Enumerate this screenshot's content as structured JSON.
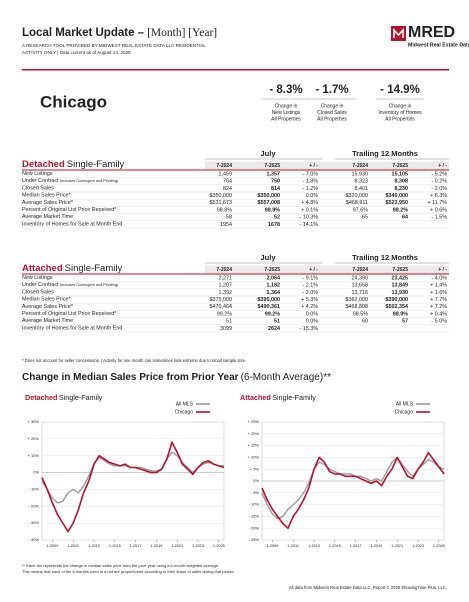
{
  "header": {
    "title": "Local Market Update –",
    "title_bracket": "[Month] [Year]",
    "subtitle_lines": [
      "A RESEARCH TOOL PROVIDED BY MIDWEST REAL ESTATE DATA LLC RESIDENTIAL",
      "ACTIVITY ONLY | Data current as of August 14, 2025"
    ],
    "logo": {
      "name": "MRED",
      "tagline": "Midwest Real Estate Data"
    }
  },
  "area": "Chicago",
  "stats": [
    {
      "value": "- 8.3%",
      "lines": [
        "Change in",
        "New Listings",
        "All Properties"
      ]
    },
    {
      "value": "- 1.7%",
      "lines": [
        "Change in",
        "Closed Sales",
        "All Properties"
      ]
    },
    {
      "value": "- 14.9%",
      "lines": [
        "Change in",
        "Inventory of Homes",
        "All Properties"
      ]
    }
  ],
  "tables": [
    {
      "title_a": "Detached",
      "title_b": "Single-Family",
      "period_headers": [
        "July",
        "Trailing 12 Months"
      ],
      "columns": [
        "7-2024",
        "7-2025",
        "+ / -",
        "7-2024",
        "7-2025",
        "+ / -"
      ],
      "rows": [
        {
          "label": "New Listings",
          "cells": [
            "1,459",
            "1,357",
            "- 7.0%",
            "15,930",
            "15,105",
            "- 5.2%"
          ]
        },
        {
          "label": "Under Contract",
          "label_note": "(includes Contingent and Pending)",
          "cells": [
            "764",
            "750",
            "- 1.8%",
            "8,323",
            "8,308",
            "- 0.2%"
          ]
        },
        {
          "label": "Closed Sales",
          "cells": [
            "824",
            "814",
            "- 1.2%",
            "8,401",
            "8,230",
            "- 2.0%"
          ]
        },
        {
          "label": "Median Sales Price*",
          "cells": [
            "$350,000",
            "$350,000",
            "0.0%",
            "$320,000",
            "$340,000",
            "+ 6.3%"
          ]
        },
        {
          "label": "Average Sales Price*",
          "cells": [
            "$531,673",
            "$557,008",
            "+ 4.8%",
            "$468,911",
            "$523,950",
            "+ 11.7%"
          ]
        },
        {
          "label": "Percent of Original List Price Received*",
          "cells": [
            "98.8%",
            "98.9%",
            "+ 0.1%",
            "97.6%",
            "98.2%",
            "+ 0.6%"
          ]
        },
        {
          "label": "Average Market Time",
          "cells": [
            "58",
            "52",
            "- 10.3%",
            "65",
            "64",
            "- 1.5%"
          ]
        },
        {
          "label": "Inventory of Homes for Sale at Month End",
          "cells": [
            "1954",
            "1678",
            "- 14.1%",
            null,
            null,
            null
          ]
        }
      ]
    },
    {
      "title_a": "Attached",
      "title_b": "Single-Family",
      "period_headers": [
        "July",
        "Trailing 12 Months"
      ],
      "columns": [
        "7-2024",
        "7-2025",
        "+ / -",
        "7-2024",
        "7-2025",
        "+ / -"
      ],
      "rows": [
        {
          "label": "New Listings",
          "cells": [
            "2,271",
            "2,064",
            "- 9.1%",
            "24,390",
            "23,425",
            "- 4.0%"
          ]
        },
        {
          "label": "Under Contract",
          "label_note": "(includes Contingent and Pending)",
          "cells": [
            "1,207",
            "1,182",
            "- 2.1%",
            "13,658",
            "13,849",
            "+ 1.4%"
          ]
        },
        {
          "label": "Closed Sales",
          "cells": [
            "1,392",
            "1,364",
            "- 2.0%",
            "13,716",
            "13,930",
            "+ 1.6%"
          ]
        },
        {
          "label": "Median Sales Price*",
          "cells": [
            "$375,000",
            "$395,000",
            "+ 5.3%",
            "$362,000",
            "$390,000",
            "+ 7.7%"
          ]
        },
        {
          "label": "Average Sales Price*",
          "cells": [
            "$470,464",
            "$490,361",
            "+ 4.2%",
            "$468,808",
            "$502,354",
            "+ 7.2%"
          ]
        },
        {
          "label": "Percent of Original List Price Received*",
          "cells": [
            "99.2%",
            "99.2%",
            "0.0%",
            "98.5%",
            "98.9%",
            "+ 0.4%"
          ]
        },
        {
          "label": "Average Market Time",
          "cells": [
            "51",
            "51",
            "0.0%",
            "60",
            "57",
            "- 5.0%"
          ]
        },
        {
          "label": "Inventory of Homes for Sale at Month End",
          "cells": [
            "3099",
            "2624",
            "- 15.3%",
            null,
            null,
            null
          ]
        }
      ]
    }
  ],
  "table_note": "* Does not account for seller concessions. | Activity for one month can sometimes look extreme due to small sample size.",
  "charts_title": "Change in Median Sales Price from Prior Year",
  "charts_title_suffix": "(6-Month Average)**",
  "charts": [
    {
      "type": "line",
      "title_a": "Detached",
      "title_b": "Single-Family",
      "x": [
        "1-2008",
        "7-2008",
        "1-2009",
        "7-2009",
        "1-2010",
        "7-2010",
        "1-2011",
        "7-2011",
        "1-2012",
        "7-2012",
        "1-2013",
        "7-2013",
        "1-2014",
        "7-2014",
        "1-2015",
        "7-2015",
        "1-2016",
        "7-2016",
        "1-2017",
        "7-2017",
        "1-2018",
        "7-2018",
        "1-2019",
        "7-2019",
        "1-2020",
        "7-2020",
        "1-2021",
        "7-2021",
        "1-2022",
        "7-2022",
        "1-2023",
        "7-2023",
        "1-2024",
        "7-2024",
        "1-2025",
        "7-2025"
      ],
      "series": [
        {
          "name": "All MLS",
          "color": "#9a9a9a",
          "values": [
            -5,
            -10,
            -15,
            -18,
            -17,
            -12,
            -10,
            -12,
            -8,
            -2,
            5,
            9,
            7,
            5,
            4,
            4,
            4,
            3,
            3,
            3,
            2,
            1,
            1,
            2,
            8,
            12,
            10,
            6,
            3,
            0,
            3,
            5,
            6,
            5,
            4,
            4
          ]
        },
        {
          "name": "Chicago",
          "color": "#b5122e",
          "values": [
            -3,
            -10,
            -18,
            -25,
            -30,
            -35,
            -30,
            -22,
            -12,
            -5,
            5,
            10,
            8,
            6,
            5,
            4,
            5,
            3,
            3,
            2,
            1,
            0,
            0,
            2,
            8,
            18,
            12,
            5,
            2,
            -1,
            3,
            6,
            7,
            5,
            4,
            3
          ]
        }
      ],
      "ylim": [
        -40,
        30
      ],
      "yticks": [
        {
          "value": 30,
          "label": "+ 30%"
        },
        {
          "value": 20,
          "label": "+ 20%"
        },
        {
          "value": 10,
          "label": "+ 10%"
        },
        {
          "value": 0,
          "label": "0%"
        },
        {
          "value": -10,
          "label": "- 10%"
        },
        {
          "value": -20,
          "label": "- 20%"
        },
        {
          "value": -30,
          "label": "- 30%"
        },
        {
          "value": -40,
          "label": "- 40%"
        }
      ],
      "xlim": [
        "1-2008",
        "7-2025"
      ],
      "xticks": [
        "1-2009",
        "1-2011",
        "1-2013",
        "1-2015",
        "1-2017",
        "1-2019",
        "1-2021",
        "1-2023",
        "1-2025"
      ]
    },
    {
      "type": "line",
      "title_a": "Attached",
      "title_b": "Single-Family",
      "x": [
        "1-2008",
        "7-2008",
        "1-2009",
        "7-2009",
        "1-2010",
        "7-2010",
        "1-2011",
        "7-2011",
        "1-2012",
        "7-2012",
        "1-2013",
        "7-2013",
        "1-2014",
        "7-2014",
        "1-2015",
        "7-2015",
        "1-2016",
        "7-2016",
        "1-2017",
        "7-2017",
        "1-2018",
        "7-2018",
        "1-2019",
        "7-2019",
        "1-2020",
        "7-2020",
        "1-2021",
        "7-2021",
        "1-2022",
        "7-2022",
        "1-2023",
        "7-2023",
        "1-2024",
        "7-2024",
        "1-2025",
        "7-2025"
      ],
      "series": [
        {
          "name": "All MLS",
          "color": "#9a9a9a",
          "values": [
            -5,
            -10,
            -14,
            -16,
            -15,
            -12,
            -10,
            -8,
            -5,
            -1,
            5,
            8,
            7,
            5,
            4,
            3,
            3,
            3,
            2,
            2,
            1,
            0,
            1,
            0,
            4,
            8,
            10,
            7,
            4,
            2,
            5,
            7,
            9,
            8,
            6,
            5
          ]
        },
        {
          "name": "Chicago",
          "color": "#b5122e",
          "values": [
            -3,
            -8,
            -12,
            -15,
            -18,
            -20,
            -15,
            -12,
            -8,
            -3,
            5,
            10,
            8,
            4,
            3,
            3,
            2,
            2,
            2,
            1,
            0,
            -1,
            0,
            -2,
            2,
            5,
            10,
            6,
            2,
            1,
            5,
            8,
            12,
            9,
            6,
            3
          ]
        }
      ],
      "ylim": [
        -25,
        25
      ],
      "yticks": [
        {
          "value": 25,
          "label": "+ 25%"
        },
        {
          "value": 20,
          "label": "+ 20%"
        },
        {
          "value": 15,
          "label": "+ 15%"
        },
        {
          "value": 10,
          "label": "+ 10%"
        },
        {
          "value": 5,
          "label": "+ 5%"
        },
        {
          "value": 0,
          "label": "0%"
        },
        {
          "value": -5,
          "label": "- 5%"
        },
        {
          "value": -10,
          "label": "- 10%"
        },
        {
          "value": -15,
          "label": "- 15%"
        },
        {
          "value": -20,
          "label": "- 20%"
        },
        {
          "value": -25,
          "label": "- 25%"
        }
      ],
      "xlim": [
        "1-2008",
        "7-2025"
      ],
      "xticks": [
        "1-2009",
        "1-2011",
        "1-2013",
        "1-2015",
        "1-2017",
        "1-2019",
        "1-2021",
        "1-2023",
        "1-2025"
      ]
    }
  ],
  "footnotes": [
    "** Each dot represents the change in median sales price from the prior year using a 6-month weighted average.",
    "This means that each of the 6 months used in a dot are proportioned according to their share of sales during that period."
  ],
  "footer": "All data from Midwest Real Estate Data LLC. Report © 2025 ShowingTime Plus, LLC."
}
